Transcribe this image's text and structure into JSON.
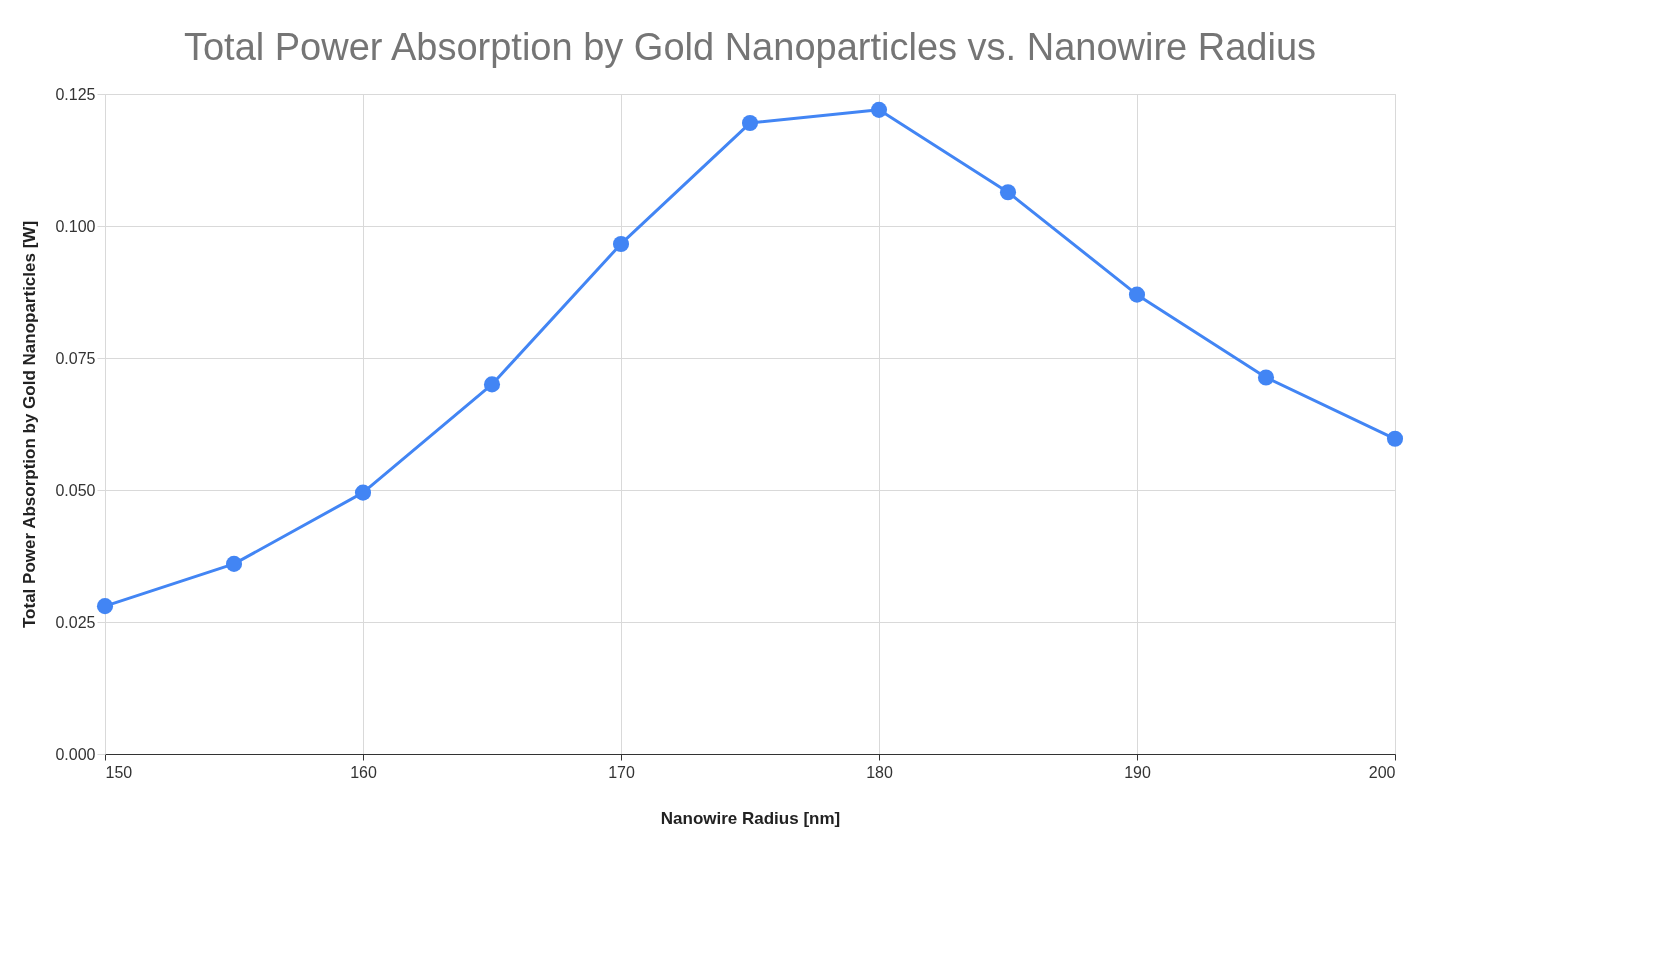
{
  "chart_data": {
    "type": "line",
    "title": "Total Power Absorption by Gold Nanoparticles vs. Nanowire Radius",
    "xlabel": "Nanowire Radius [nm]",
    "ylabel": "Total Power Absorption by Gold Nanoparticles [W]",
    "x": [
      150,
      155,
      160,
      165,
      170,
      175,
      180,
      185,
      190,
      195,
      200
    ],
    "series": [
      {
        "color": "#4285f4",
        "values": [
          0.028,
          0.036,
          0.0495,
          0.07,
          0.0966,
          0.1195,
          0.122,
          0.1064,
          0.087,
          0.0713,
          0.0597
        ]
      }
    ],
    "xlim": [
      150,
      200
    ],
    "xticks": [
      150,
      160,
      170,
      180,
      190,
      200
    ],
    "ylim": [
      0,
      0.125
    ],
    "yticks": [
      {
        "value": 0,
        "label": "0.000"
      },
      {
        "value": 0.025,
        "label": "0.025"
      },
      {
        "value": 0.05,
        "label": "0.050"
      },
      {
        "value": 0.075,
        "label": "0.075"
      },
      {
        "value": 0.1,
        "label": "0.100"
      },
      {
        "value": 0.125,
        "label": "0.125"
      }
    ],
    "grid": true,
    "marker": "circle",
    "line_style": "solid",
    "legend": false
  }
}
